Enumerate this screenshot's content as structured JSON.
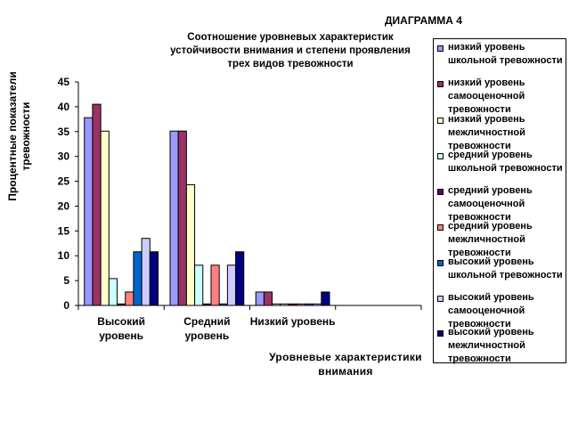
{
  "diagram_label": "ДИАГРАММА 4",
  "chart_data": {
    "type": "bar",
    "title_lines": [
      "Соотношение уровневых характеристик",
      "устойчивости внимания и степени проявления",
      "трех видов тревожности"
    ],
    "ylabel_lines": [
      "Процентные показатели",
      "тревожности"
    ],
    "xlabel_lines": [
      "Уровневые характеристики",
      "внимания"
    ],
    "ylim": [
      0,
      45
    ],
    "yticks": [
      "0",
      "5",
      "10",
      "15",
      "20",
      "25",
      "30",
      "35",
      "40",
      "45"
    ],
    "categories": [
      {
        "lines": [
          "Высокий",
          "уровень"
        ]
      },
      {
        "lines": [
          "Средний",
          "уровень"
        ]
      },
      {
        "lines": [
          "Низкий уровень"
        ]
      },
      {
        "lines": [
          ""
        ]
      }
    ],
    "series": [
      {
        "lines": [
          "низкий уровень",
          "школьной тревожности"
        ],
        "color": "#9999ff",
        "values": [
          37.8,
          35.1,
          2.7,
          0
        ]
      },
      {
        "lines": [
          "низкий уровень",
          "самооценочной",
          "тревожности"
        ],
        "color": "#993366",
        "values": [
          40.5,
          35.1,
          2.7,
          0
        ]
      },
      {
        "lines": [
          "низкий уровень",
          "межличностной",
          "тревожности"
        ],
        "color": "#ffffcc",
        "values": [
          35.1,
          24.3,
          0.3,
          0
        ]
      },
      {
        "lines": [
          "средний уровень",
          "школьной тревожности"
        ],
        "color": "#ccffff",
        "values": [
          5.4,
          8.1,
          0.3,
          0
        ]
      },
      {
        "lines": [
          "средний уровень",
          "самооценочной",
          "тревожности"
        ],
        "color": "#660066",
        "values": [
          0.3,
          0.3,
          0.3,
          0
        ]
      },
      {
        "lines": [
          "средний уровень",
          "межличностной",
          "тревожности"
        ],
        "color": "#ff8080",
        "values": [
          2.7,
          8.1,
          0.3,
          0
        ]
      },
      {
        "lines": [
          "высокий уровень",
          "школьной тревожности"
        ],
        "color": "#0066cc",
        "values": [
          10.8,
          0.3,
          0.3,
          0
        ]
      },
      {
        "lines": [
          "высокий уровень",
          "самооценочной",
          "тревожности"
        ],
        "color": "#ccccff",
        "values": [
          13.5,
          8.1,
          0.3,
          0
        ]
      },
      {
        "lines": [
          "высокий уровень",
          "межличностной",
          "тревожности"
        ],
        "color": "#000080",
        "values": [
          10.8,
          10.8,
          2.7,
          0
        ]
      }
    ]
  }
}
